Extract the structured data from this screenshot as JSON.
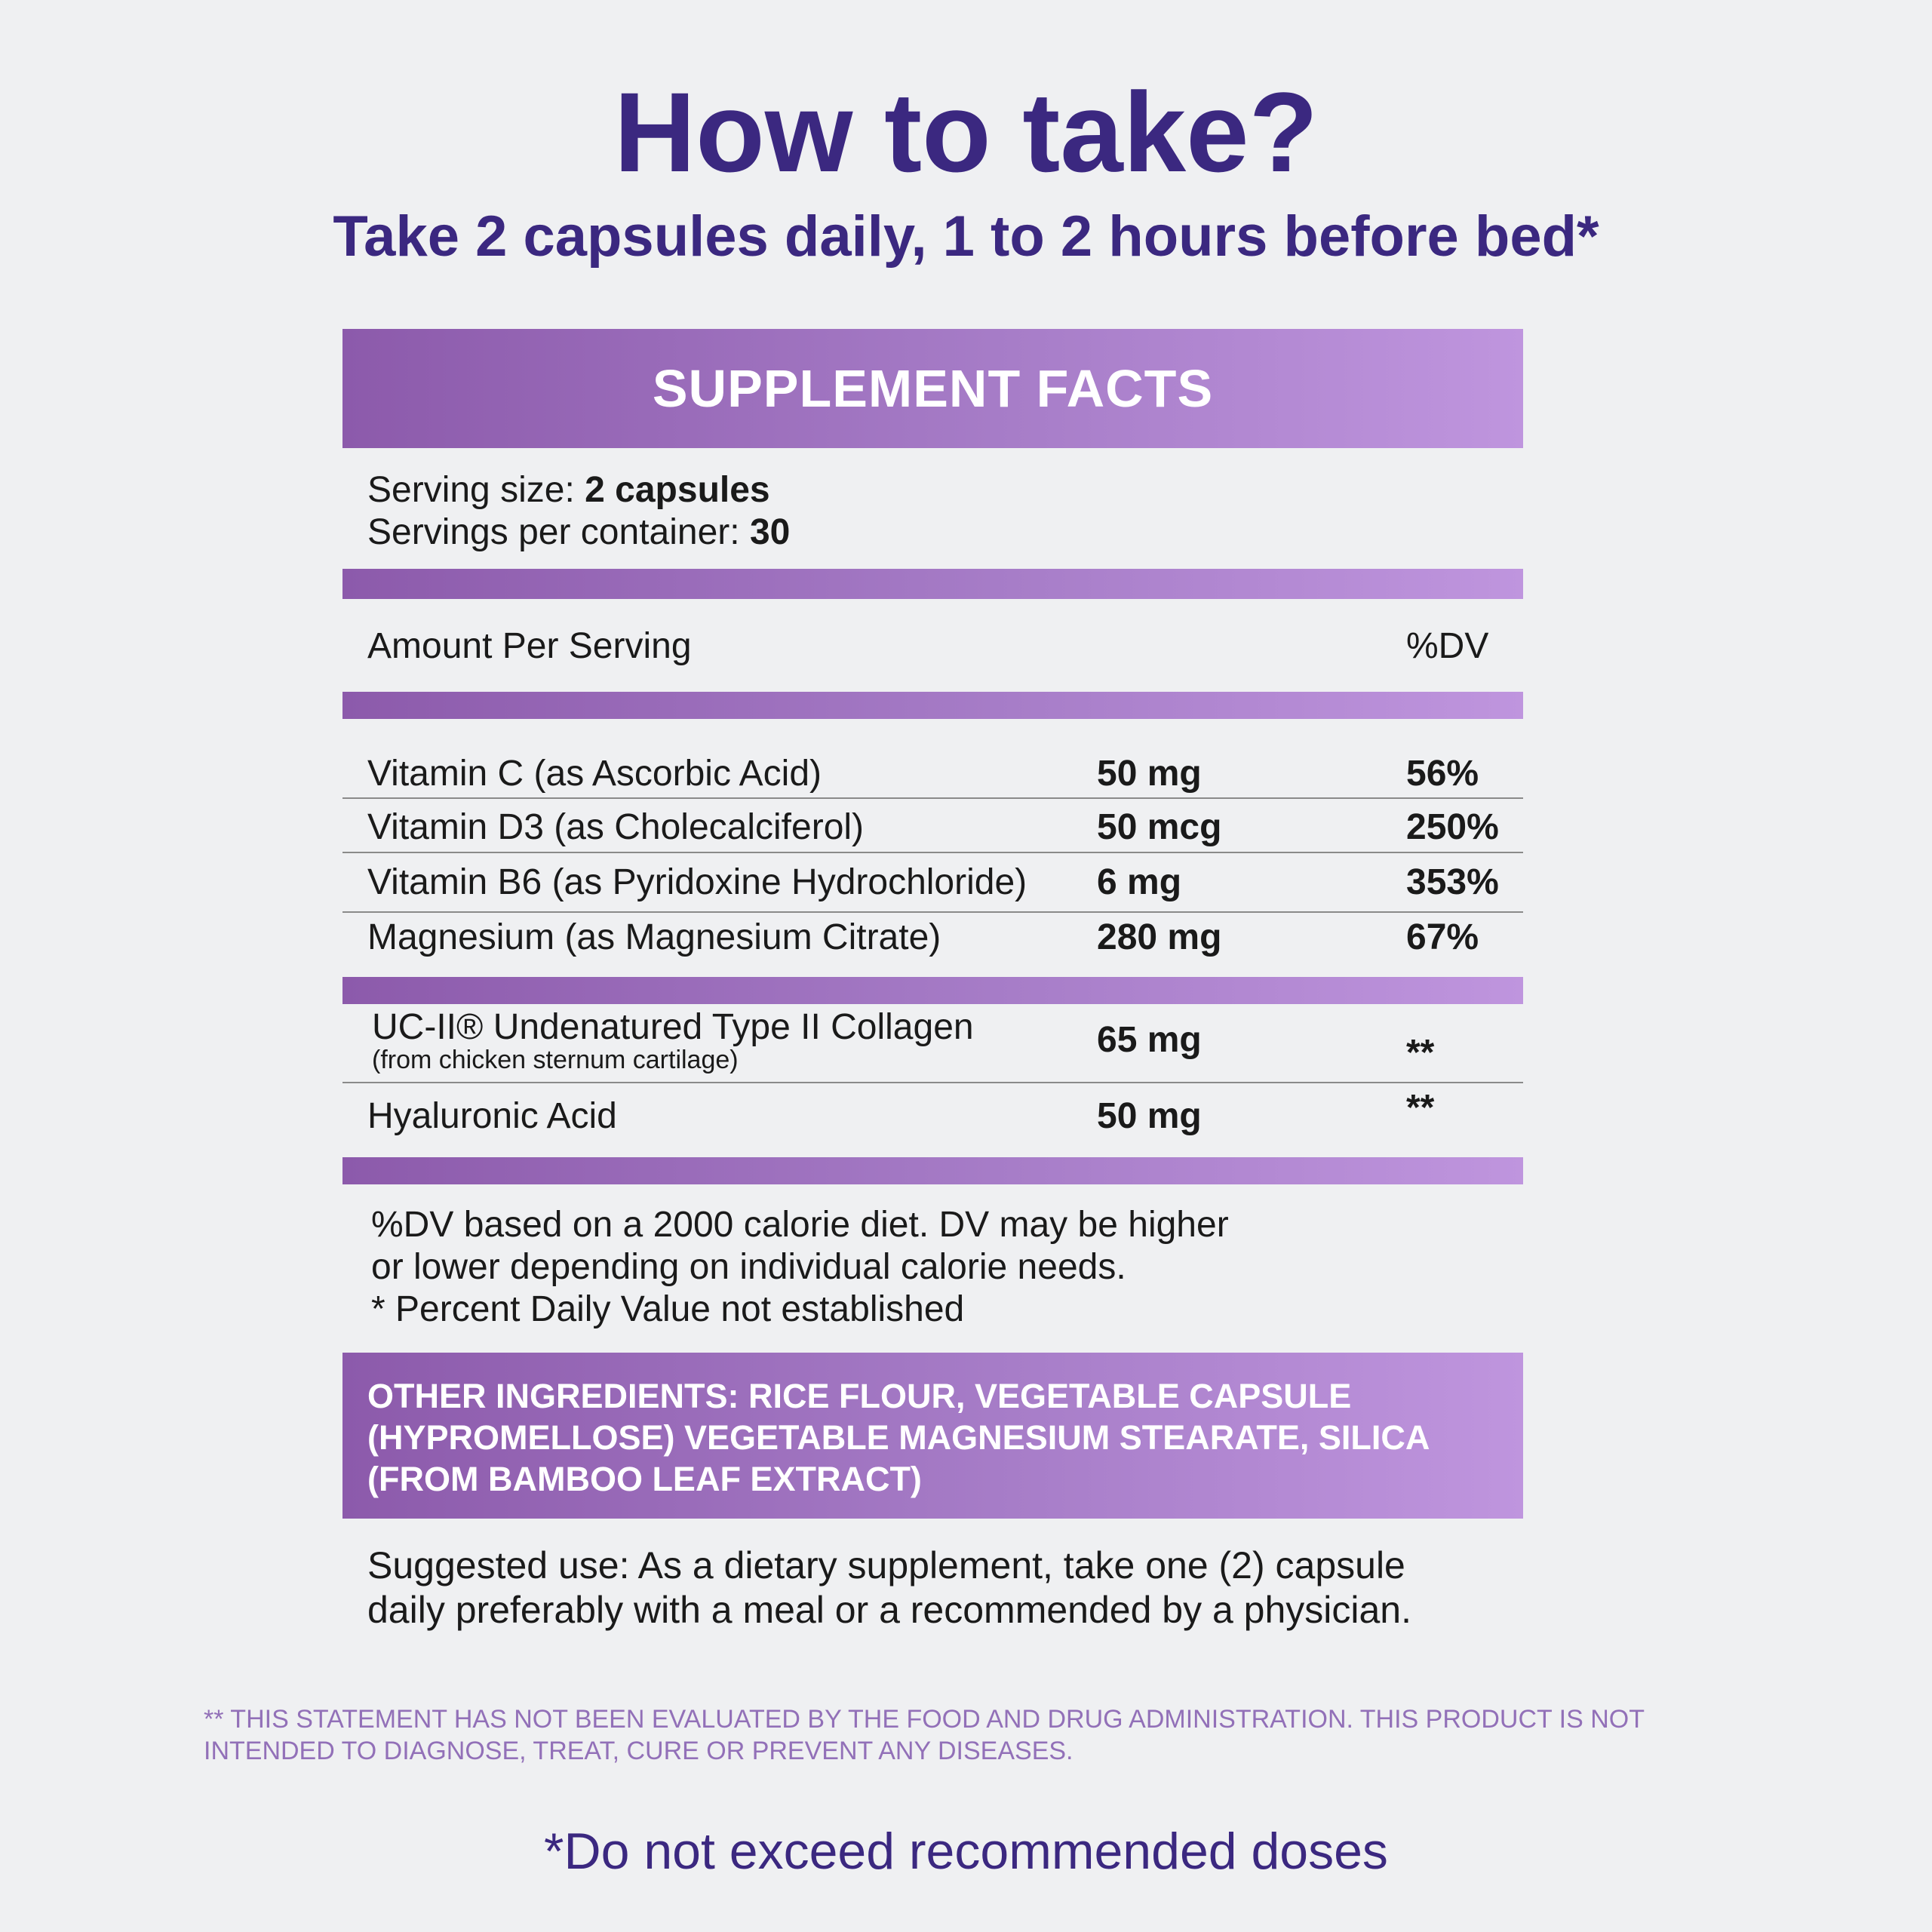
{
  "title": "How to take?",
  "subtitle": "Take 2 capsules daily, 1 to 2 hours before bed*",
  "facts_header": "SUPPLEMENT FACTS",
  "serving": {
    "size_label": "Serving size: ",
    "size_value": "2 capsules",
    "per_container_label": "Servings per container: ",
    "per_container_value": "30"
  },
  "columns": {
    "amount_per_serving": "Amount Per Serving",
    "dv": "%DV"
  },
  "vitamins": [
    {
      "name": "Vitamin C (as Ascorbic Acid)",
      "amount": "50 mg",
      "dv": "56%"
    },
    {
      "name": "Vitamin D3 (as Cholecalciferol)",
      "amount": "50 mcg",
      "dv": "250%"
    },
    {
      "name": "Vitamin B6 (as Pyridoxine Hydrochloride)",
      "amount": "6 mg",
      "dv": "353%"
    },
    {
      "name": "Magnesium (as Magnesium Citrate)",
      "amount": "280 mg",
      "dv": "67%"
    }
  ],
  "other_actives": [
    {
      "name": "UC-II® Undenatured Type II Collagen",
      "sub": "(from chicken sternum cartilage)",
      "amount": "65 mg",
      "dv": "**"
    },
    {
      "name": "Hyaluronic Acid",
      "amount": "50 mg",
      "dv": "**"
    }
  ],
  "notes": [
    "%DV based on a 2000 calorie diet. DV may be higher",
    "or lower depending on individual calorie needs.",
    "* Percent Daily Value not established"
  ],
  "other_ingredients": [
    "OTHER INGREDIENTS: RICE FLOUR, VEGETABLE CAPSULE",
    "(HYPROMELLOSE) VEGETABLE MAGNESIUM STEARATE, SILICA",
    "(FROM BAMBOO LEAF EXTRACT)"
  ],
  "suggested_use": [
    "Suggested use: As a dietary supplement, take one (2) capsule",
    "daily preferably with a meal or a recommended by a physician."
  ],
  "disclaimer": [
    "** THIS STATEMENT HAS NOT BEEN EVALUATED BY THE FOOD AND DRUG ADMINISTRATION. THIS PRODUCT IS NOT",
    "INTENDED TO DIAGNOSE, TREAT, CURE OR PREVENT ANY DISEASES."
  ],
  "footer_note": "*Do not exceed recommended doses",
  "colors": {
    "title": "#3b2880",
    "band_start": "#8c5aab",
    "band_end": "#bf95de",
    "disclaimer": "#9270b8",
    "background": "#eff0f2"
  }
}
